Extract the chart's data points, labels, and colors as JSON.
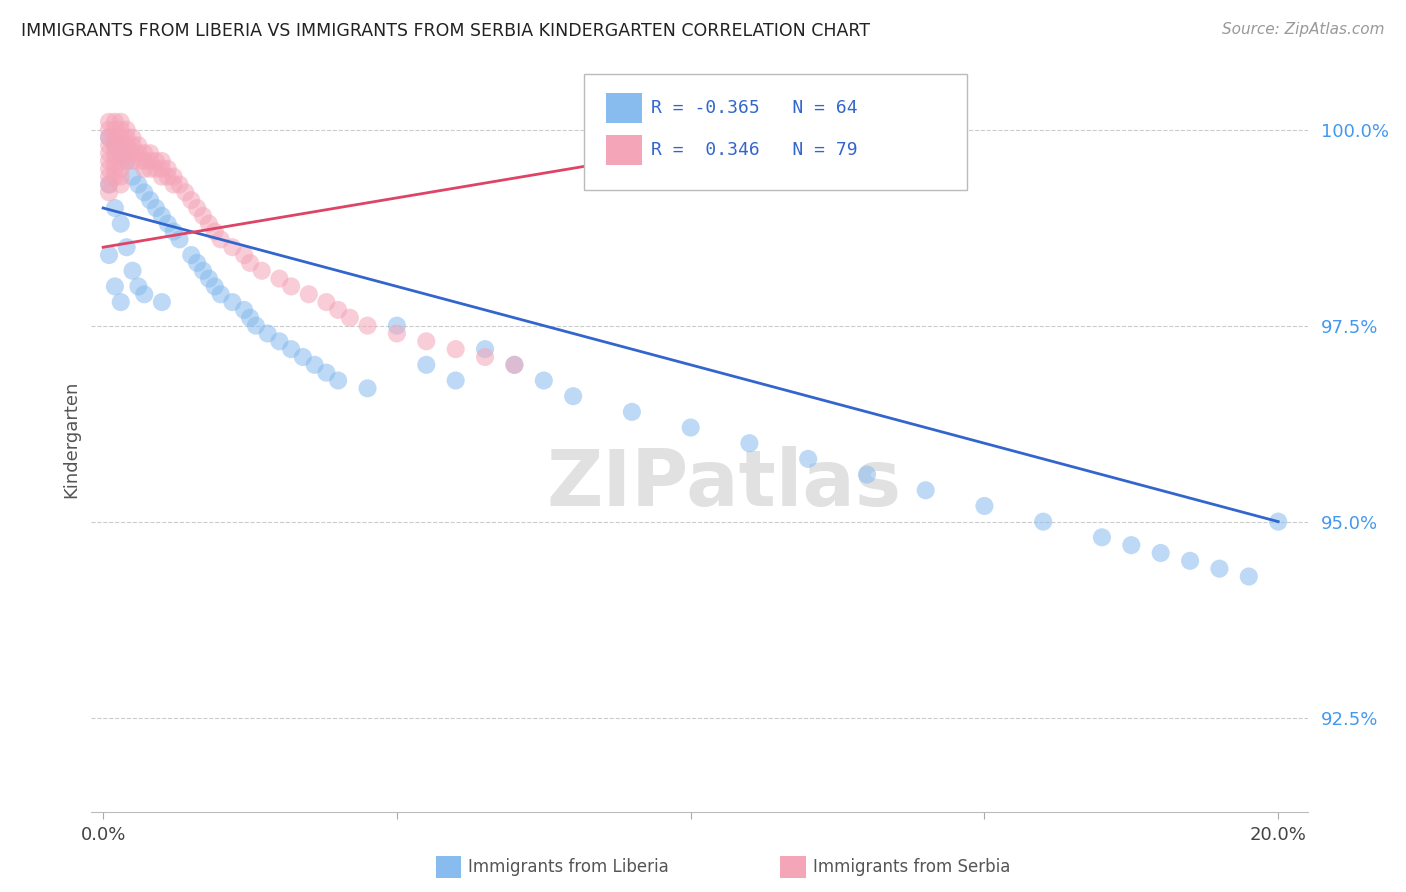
{
  "title": "IMMIGRANTS FROM LIBERIA VS IMMIGRANTS FROM SERBIA KINDERGARTEN CORRELATION CHART",
  "source": "Source: ZipAtlas.com",
  "ylabel": "Kindergarten",
  "xlim_min": -0.002,
  "xlim_max": 0.205,
  "ylim_min": 0.913,
  "ylim_max": 1.008,
  "yticks": [
    0.925,
    0.95,
    0.975,
    1.0
  ],
  "ytick_labels": [
    "92.5%",
    "95.0%",
    "97.5%",
    "100.0%"
  ],
  "legend_r_liberia": "-0.365",
  "legend_n_liberia": "64",
  "legend_r_serbia": "0.346",
  "legend_n_serbia": "79",
  "liberia_color": "#88bbee",
  "serbia_color": "#f4a5b8",
  "liberia_line_color": "#3366cc",
  "serbia_line_color": "#dd4466",
  "watermark": "ZIPatlas",
  "watermark_color": "#dedede",
  "grid_color": "#cccccc",
  "title_color": "#222222",
  "source_color": "#999999",
  "y_tick_color": "#4499ee",
  "bottom_label_color": "#555555",
  "liberia_label": "Immigrants from Liberia",
  "serbia_label": "Immigrants from Serbia",
  "blue_line_x0": 0.0,
  "blue_line_y0": 0.99,
  "blue_line_x1": 0.2,
  "blue_line_y1": 0.95,
  "pink_line_x0": 0.0,
  "pink_line_y0": 0.985,
  "pink_line_x1": 0.135,
  "pink_line_y1": 1.002,
  "liberia_x": [
    0.001,
    0.001,
    0.001,
    0.002,
    0.002,
    0.002,
    0.003,
    0.003,
    0.003,
    0.004,
    0.004,
    0.005,
    0.005,
    0.006,
    0.006,
    0.007,
    0.007,
    0.008,
    0.009,
    0.01,
    0.01,
    0.011,
    0.012,
    0.013,
    0.015,
    0.016,
    0.017,
    0.018,
    0.019,
    0.02,
    0.022,
    0.024,
    0.025,
    0.026,
    0.028,
    0.03,
    0.032,
    0.034,
    0.036,
    0.038,
    0.04,
    0.045,
    0.05,
    0.055,
    0.06,
    0.065,
    0.07,
    0.075,
    0.08,
    0.09,
    0.1,
    0.11,
    0.12,
    0.13,
    0.14,
    0.15,
    0.16,
    0.17,
    0.175,
    0.18,
    0.185,
    0.19,
    0.195,
    0.2
  ],
  "liberia_y": [
    0.999,
    0.993,
    0.984,
    0.998,
    0.99,
    0.98,
    0.997,
    0.988,
    0.978,
    0.996,
    0.985,
    0.994,
    0.982,
    0.993,
    0.98,
    0.992,
    0.979,
    0.991,
    0.99,
    0.989,
    0.978,
    0.988,
    0.987,
    0.986,
    0.984,
    0.983,
    0.982,
    0.981,
    0.98,
    0.979,
    0.978,
    0.977,
    0.976,
    0.975,
    0.974,
    0.973,
    0.972,
    0.971,
    0.97,
    0.969,
    0.968,
    0.967,
    0.975,
    0.97,
    0.968,
    0.972,
    0.97,
    0.968,
    0.966,
    0.964,
    0.962,
    0.96,
    0.958,
    0.956,
    0.954,
    0.952,
    0.95,
    0.948,
    0.947,
    0.946,
    0.945,
    0.944,
    0.943,
    0.95
  ],
  "serbia_x": [
    0.001,
    0.001,
    0.001,
    0.001,
    0.001,
    0.001,
    0.001,
    0.001,
    0.001,
    0.001,
    0.002,
    0.002,
    0.002,
    0.002,
    0.002,
    0.002,
    0.002,
    0.002,
    0.003,
    0.003,
    0.003,
    0.003,
    0.003,
    0.003,
    0.003,
    0.003,
    0.003,
    0.004,
    0.004,
    0.004,
    0.004,
    0.004,
    0.005,
    0.005,
    0.005,
    0.005,
    0.006,
    0.006,
    0.006,
    0.007,
    0.007,
    0.007,
    0.008,
    0.008,
    0.008,
    0.009,
    0.009,
    0.01,
    0.01,
    0.01,
    0.011,
    0.011,
    0.012,
    0.012,
    0.013,
    0.014,
    0.015,
    0.016,
    0.017,
    0.018,
    0.019,
    0.02,
    0.022,
    0.024,
    0.025,
    0.027,
    0.03,
    0.032,
    0.035,
    0.038,
    0.04,
    0.042,
    0.045,
    0.05,
    0.055,
    0.06,
    0.065,
    0.07,
    0.135
  ],
  "serbia_y": [
    1.001,
    1.0,
    0.999,
    0.998,
    0.997,
    0.996,
    0.995,
    0.994,
    0.993,
    0.992,
    1.001,
    1.0,
    0.999,
    0.998,
    0.997,
    0.996,
    0.995,
    0.994,
    1.001,
    1.0,
    0.999,
    0.998,
    0.997,
    0.996,
    0.995,
    0.994,
    0.993,
    1.0,
    0.999,
    0.998,
    0.997,
    0.996,
    0.999,
    0.998,
    0.997,
    0.996,
    0.998,
    0.997,
    0.996,
    0.997,
    0.996,
    0.995,
    0.997,
    0.996,
    0.995,
    0.996,
    0.995,
    0.996,
    0.995,
    0.994,
    0.995,
    0.994,
    0.994,
    0.993,
    0.993,
    0.992,
    0.991,
    0.99,
    0.989,
    0.988,
    0.987,
    0.986,
    0.985,
    0.984,
    0.983,
    0.982,
    0.981,
    0.98,
    0.979,
    0.978,
    0.977,
    0.976,
    0.975,
    0.974,
    0.973,
    0.972,
    0.971,
    0.97,
    0.998
  ]
}
